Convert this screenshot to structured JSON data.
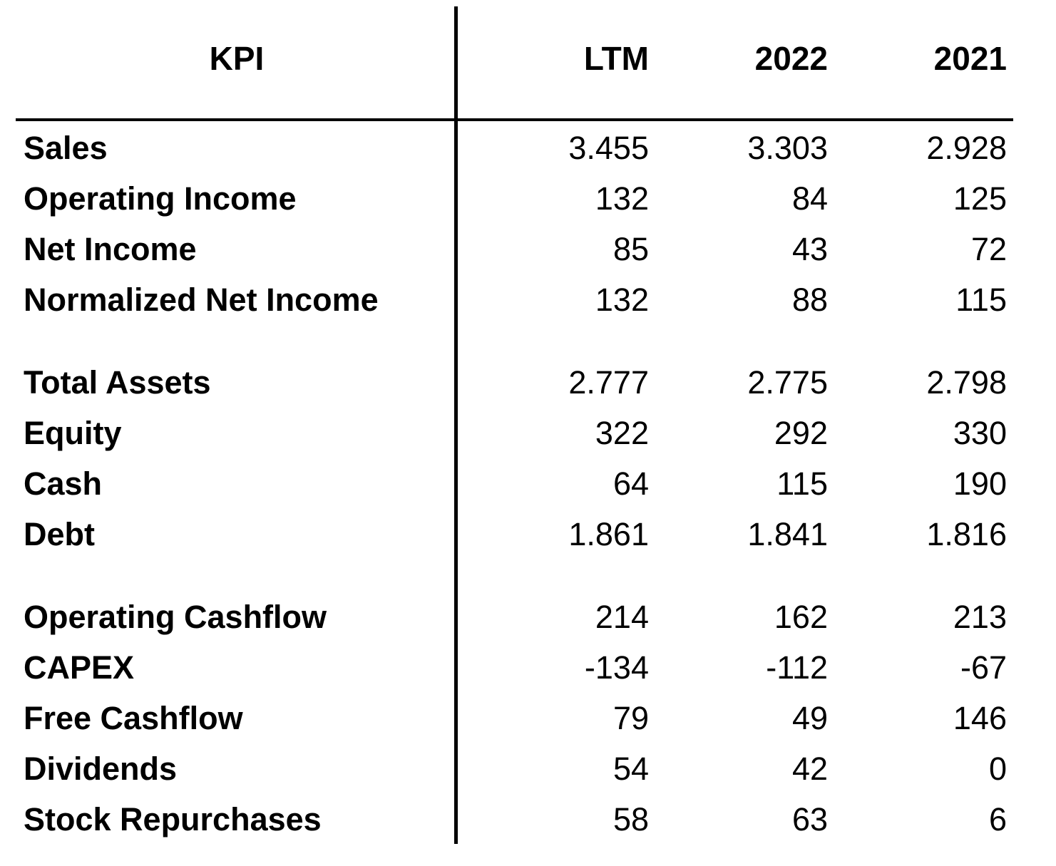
{
  "table": {
    "header": {
      "kpi": "KPI",
      "columns": [
        "LTM",
        "2022",
        "2021"
      ]
    },
    "rows": [
      {
        "label": "Sales",
        "values": [
          "3.455",
          "3.303",
          "2.928"
        ]
      },
      {
        "label": "Operating Income",
        "values": [
          "132",
          "84",
          "125"
        ]
      },
      {
        "label": "Net Income",
        "values": [
          "85",
          "43",
          "72"
        ]
      },
      {
        "label": "Normalized Net Income",
        "values": [
          "132",
          "88",
          "115"
        ]
      },
      {
        "label": "Total Assets",
        "values": [
          "2.777",
          "2.775",
          "2.798"
        ]
      },
      {
        "label": "Equity",
        "values": [
          "322",
          "292",
          "330"
        ]
      },
      {
        "label": "Cash",
        "values": [
          "64",
          "115",
          "190"
        ]
      },
      {
        "label": "Debt",
        "values": [
          "1.861",
          "1.841",
          "1.816"
        ]
      },
      {
        "label": "Operating Cashflow",
        "values": [
          "214",
          "162",
          "213"
        ]
      },
      {
        "label": "CAPEX",
        "values": [
          "-134",
          "-112",
          "-67"
        ]
      },
      {
        "label": "Free Cashflow",
        "values": [
          "79",
          "49",
          "146"
        ]
      },
      {
        "label": "Dividends",
        "values": [
          "54",
          "42",
          "0"
        ]
      },
      {
        "label": "Stock Repurchases",
        "values": [
          "58",
          "63",
          "6"
        ]
      }
    ]
  }
}
